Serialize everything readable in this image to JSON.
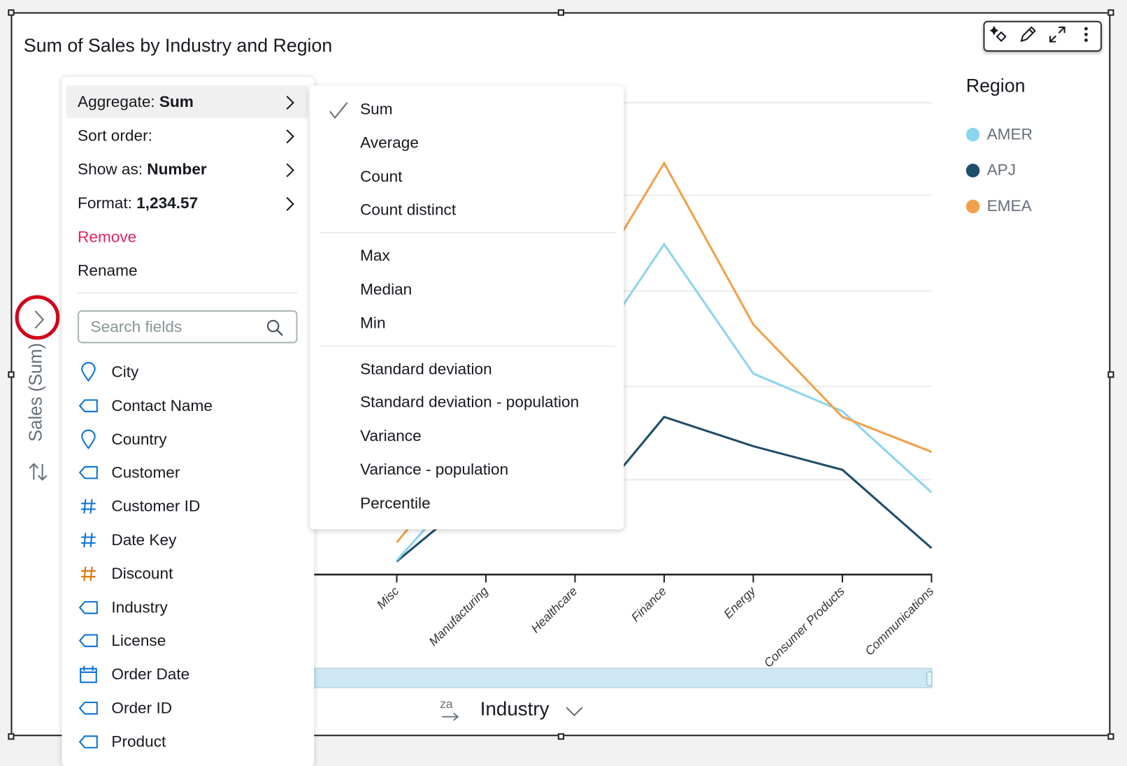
{
  "visual": {
    "title": "Sum of Sales by Industry and Region",
    "toolbar": [
      {
        "icon": "insights-sparkle-icon"
      },
      {
        "icon": "pencil-icon"
      },
      {
        "icon": "expand-icon"
      },
      {
        "icon": "more-vertical-icon"
      }
    ]
  },
  "legend": {
    "title": "Region",
    "items": [
      {
        "label": "AMER",
        "color": "#8dd5ee"
      },
      {
        "label": "APJ",
        "color": "#1f4e6b"
      },
      {
        "label": "EMEA",
        "color": "#f1a14a"
      }
    ]
  },
  "axes": {
    "y_title": "Sales (Sum)",
    "x_title": "Industry",
    "sort_icon_text": "za"
  },
  "chart_data": {
    "type": "line",
    "title": "Sum of Sales by Industry and Region",
    "xlabel": "Industry",
    "ylabel": "Sales (Sum)",
    "categories": [
      "Misc",
      "Manufacturing",
      "Healthcare",
      "Finance",
      "Energy",
      "Consumer Products",
      "Communications"
    ],
    "grid": true,
    "legend_position": "right",
    "ylim": [
      0,
      5
    ],
    "series": [
      {
        "name": "AMER",
        "color": "#8dd5ee",
        "values": [
          0.15,
          1.2,
          2.1,
          3.5,
          2.13,
          1.73,
          0.87
        ]
      },
      {
        "name": "APJ",
        "color": "#1f4e6b",
        "values": [
          0.14,
          0.92,
          0.53,
          1.67,
          1.36,
          1.11,
          0.28
        ]
      },
      {
        "name": "EMEA",
        "color": "#f1a14a",
        "values": [
          0.34,
          1.5,
          2.8,
          4.36,
          2.65,
          1.67,
          1.3
        ]
      }
    ]
  },
  "field_menu": {
    "items": [
      {
        "label": "Aggregate:",
        "value": "Sum",
        "has_submenu": true,
        "active": true
      },
      {
        "label": "Sort order:",
        "value": "",
        "has_submenu": true
      },
      {
        "label": "Show as:",
        "value": "Number",
        "has_submenu": true
      },
      {
        "label": "Format:",
        "value": "1,234.57",
        "has_submenu": true
      },
      {
        "label": "Remove",
        "color": "#e0245e"
      },
      {
        "label": "Rename"
      }
    ],
    "search_placeholder": "Search fields",
    "fields": [
      {
        "label": "City",
        "icon": "location-pin-icon"
      },
      {
        "label": "Contact Name",
        "icon": "tag-icon"
      },
      {
        "label": "Country",
        "icon": "location-pin-icon"
      },
      {
        "label": "Customer",
        "icon": "tag-icon"
      },
      {
        "label": "Customer ID",
        "icon": "hash-icon"
      },
      {
        "label": "Date Key",
        "icon": "hash-icon"
      },
      {
        "label": "Discount",
        "icon": "hash-icon",
        "color": "#d97706"
      },
      {
        "label": "Industry",
        "icon": "tag-icon"
      },
      {
        "label": "License",
        "icon": "tag-icon"
      },
      {
        "label": "Order Date",
        "icon": "calendar-icon"
      },
      {
        "label": "Order ID",
        "icon": "tag-icon"
      },
      {
        "label": "Product",
        "icon": "tag-icon"
      }
    ]
  },
  "aggregate_submenu": {
    "selected": "Sum",
    "groups": [
      [
        "Sum",
        "Average",
        "Count",
        "Count distinct"
      ],
      [
        "Max",
        "Median",
        "Min"
      ],
      [
        "Standard deviation",
        "Standard deviation - population",
        "Variance",
        "Variance - population",
        "Percentile"
      ]
    ]
  }
}
